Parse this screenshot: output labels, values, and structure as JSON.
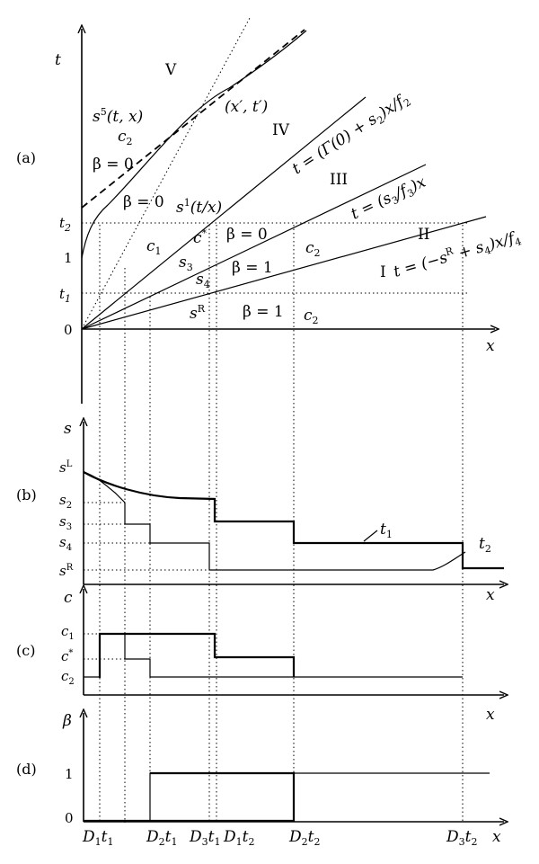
{
  "panels": {
    "a": "(a)",
    "b": "(b)",
    "c": "(c)",
    "d": "(d)"
  },
  "panel_a": {
    "t_axis": "t",
    "x_axis": "x",
    "ticks": {
      "t2": "t2",
      "one": "1",
      "t1": "t1",
      "zero": "0"
    },
    "regions": {
      "V": "V",
      "IV": "IV",
      "III": "III",
      "II": "II",
      "I": "I"
    },
    "point": "(x′, t′)",
    "curve_s5": "s5(t, x)",
    "c2_top": "c2",
    "beta0_top": "β = 0",
    "beta0_mid": "β = 0",
    "s1": "s1(t/x)",
    "c1": "c1",
    "cstar": "c*",
    "s3": "s3",
    "s4": "s4",
    "sR": "sR",
    "beta0_right": "β = 0",
    "c2_mid": "c2",
    "beta1_upper": "β = 1",
    "beta1_lower": "β = 1",
    "c2_lower": "c2",
    "line_IV": "t = (Γ(0) + s2)x/f2",
    "line_III": "t = (s3/f3)x",
    "line_I": "t = (−sR + s4)x/f4"
  },
  "panel_b": {
    "y_axis": "s",
    "x_axis": "x",
    "ticks": {
      "sL": "sL",
      "s2": "s2",
      "s3": "s3",
      "s4": "s4",
      "sR": "sR"
    },
    "curve_t1": "t1",
    "curve_t2": "t2"
  },
  "panel_c": {
    "y_axis": "c",
    "x_axis": "x",
    "ticks": {
      "c1": "c1",
      "cstar": "c*",
      "c2": "c2"
    }
  },
  "panel_d": {
    "y_axis": "β",
    "x_axis": "x",
    "ticks": {
      "one": "1",
      "zero": "0"
    },
    "xticks": [
      "D1t1",
      "D2t1",
      "D3t1",
      "D1t2",
      "D2t2",
      "D3t2"
    ]
  }
}
